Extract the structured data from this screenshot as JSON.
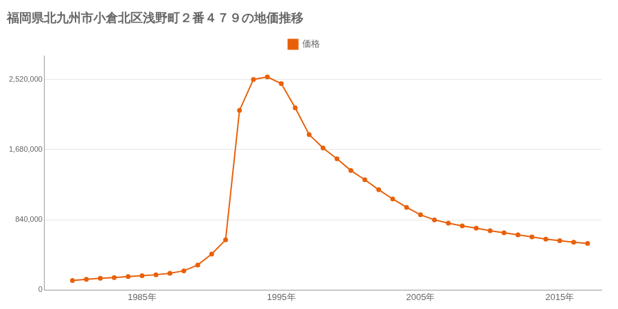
{
  "chart_data": {
    "type": "line",
    "title": "福岡県北九州市小倉北区浅野町２番４７９の地価推移",
    "x": [
      1980,
      1981,
      1982,
      1983,
      1984,
      1985,
      1986,
      1987,
      1988,
      1989,
      1990,
      1991,
      1992,
      1993,
      1994,
      1995,
      1996,
      1997,
      1998,
      1999,
      2000,
      2001,
      2002,
      2003,
      2004,
      2005,
      2006,
      2007,
      2008,
      2009,
      2010,
      2011,
      2012,
      2013,
      2014,
      2015,
      2016,
      2017
    ],
    "series": [
      {
        "name": "価格",
        "color": "#e8610a",
        "values": [
          115000,
          128000,
          140000,
          150000,
          162000,
          172000,
          183000,
          200000,
          230000,
          300000,
          430000,
          600000,
          2150000,
          2520000,
          2550000,
          2470000,
          2180000,
          1860000,
          1700000,
          1570000,
          1430000,
          1320000,
          1200000,
          1090000,
          990000,
          900000,
          840000,
          800000,
          768000,
          740000,
          710000,
          685000,
          660000,
          635000,
          610000,
          590000,
          572000,
          558000
        ]
      }
    ],
    "xlim": [
      1978,
      2018
    ],
    "xticks": [
      {
        "value": 1985,
        "label": "1985年"
      },
      {
        "value": 1995,
        "label": "1995年"
      },
      {
        "value": 2005,
        "label": "2005年"
      },
      {
        "value": 2015,
        "label": "2015年"
      }
    ],
    "ylim": [
      0,
      2800000
    ],
    "yticks": [
      0,
      {
        "value": 840000,
        "label": "840,000"
      },
      {
        "value": 1680000,
        "label": "1,680,000"
      },
      {
        "value": 2520000,
        "label": "2,520,000"
      }
    ],
    "grid": "y",
    "marker": "circle",
    "legend": "top"
  }
}
